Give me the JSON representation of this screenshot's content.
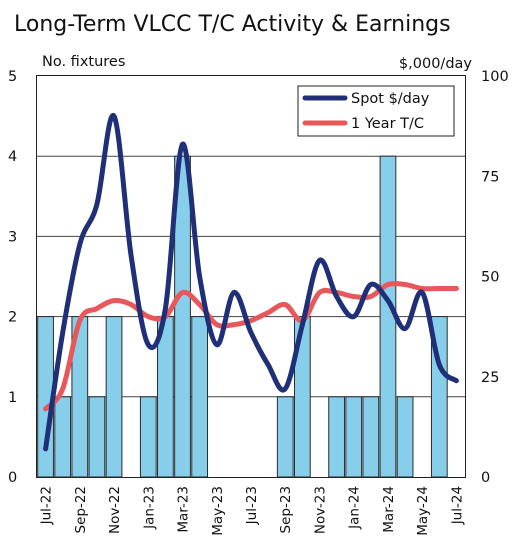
{
  "chart_data": {
    "type": "bar+line",
    "title": "Long-Term VLCC T/C Activity & Earnings",
    "left_axis": {
      "label": "No. fixtures",
      "min": 0,
      "max": 5,
      "ticks": [
        "0",
        "1",
        "2",
        "3",
        "4",
        "5"
      ]
    },
    "right_axis": {
      "label": "$,000/day",
      "min": 0,
      "max": 100,
      "ticks": [
        "0",
        "25",
        "50",
        "75",
        "100"
      ]
    },
    "grid": "horizontal",
    "legend_position": "top-right",
    "months": [
      "Jul-22",
      "Aug-22",
      "Sep-22",
      "Oct-22",
      "Nov-22",
      "Dec-22",
      "Jan-23",
      "Feb-23",
      "Mar-23",
      "Apr-23",
      "May-23",
      "Jun-23",
      "Jul-23",
      "Aug-23",
      "Sep-23",
      "Oct-23",
      "Nov-23",
      "Dec-23",
      "Jan-24",
      "Feb-24",
      "Mar-24",
      "Apr-24",
      "May-24",
      "Jun-24",
      "Jul-24"
    ],
    "x_tick_labels": [
      {
        "index": 0,
        "label": "Jul-22"
      },
      {
        "index": 2,
        "label": "Sep-22"
      },
      {
        "index": 4,
        "label": "Nov-22"
      },
      {
        "index": 6,
        "label": "Jan-23"
      },
      {
        "index": 8,
        "label": "Mar-23"
      },
      {
        "index": 10,
        "label": "May-23"
      },
      {
        "index": 12,
        "label": "Jul-23"
      },
      {
        "index": 14,
        "label": "Sep-23"
      },
      {
        "index": 16,
        "label": "Nov-23"
      },
      {
        "index": 18,
        "label": "Jan-24"
      },
      {
        "index": 20,
        "label": "Mar-24"
      },
      {
        "index": 22,
        "label": "May-24"
      },
      {
        "index": 24,
        "label": "Jul-24"
      }
    ],
    "bars": {
      "axis": "left",
      "color": "#87ceeb",
      "values": [
        2,
        1,
        2,
        1,
        2,
        0,
        1,
        2,
        4,
        2,
        0,
        0,
        0,
        0,
        1,
        2,
        0,
        1,
        1,
        1,
        4,
        1,
        0,
        2,
        0
      ]
    },
    "series": [
      {
        "name": "Spot $/day",
        "axis": "right",
        "color": "#1f2f78",
        "values": [
          7,
          36,
          58,
          68,
          90,
          55,
          33,
          42,
          83,
          50,
          33,
          46,
          36,
          28,
          22,
          38,
          54,
          45,
          40,
          48,
          44,
          37,
          46,
          28,
          24
        ]
      },
      {
        "name": "1 Year T/C",
        "axis": "right",
        "color": "#e8585a",
        "values": [
          17,
          22,
          39,
          42,
          44,
          43,
          40,
          40,
          46,
          43,
          38,
          38,
          39,
          41,
          43,
          39,
          46,
          46,
          45,
          45,
          48,
          48,
          47,
          47,
          47
        ]
      }
    ]
  }
}
